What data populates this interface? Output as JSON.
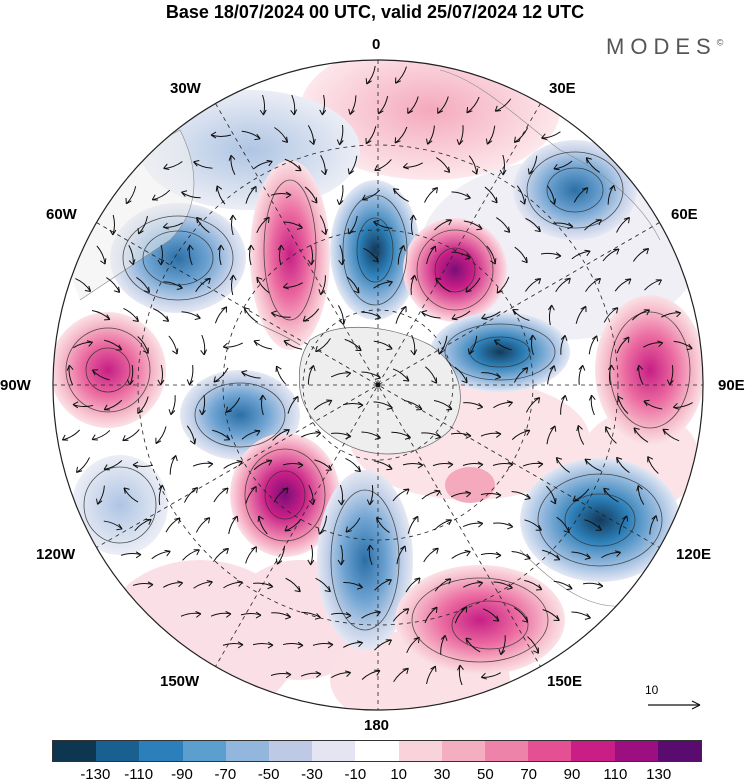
{
  "header": {
    "title": "Base 18/07/2024 00 UTC, valid 25/07/2024 12 UTC",
    "brand": "MODES",
    "brand_mark": "©"
  },
  "map": {
    "projection": "south-polar-stereographic",
    "field": "filled anomaly contours with streamlines",
    "lon_labels": {
      "top": "0",
      "top_left": "30W",
      "top_right": "30E",
      "upper_left": "60W",
      "upper_right": "60E",
      "left": "90W",
      "right": "90E",
      "lower_left": "120W",
      "lower_right": "120E",
      "bottom_left": "150W",
      "bottom_right": "150E",
      "bottom": "180"
    },
    "vector_scale_label": "10"
  },
  "colorbar": {
    "colors": [
      "#0d3651",
      "#195f8f",
      "#2c7fb8",
      "#5b9fcf",
      "#92b6dc",
      "#bec9e5",
      "#e4e4f2",
      "#ffffff",
      "#f8d3d9",
      "#f5aec0",
      "#ef82a8",
      "#e55094",
      "#c81e86",
      "#9b0f80",
      "#5a0b6f"
    ],
    "ticks": [
      "-130",
      "-110",
      "-90",
      "-70",
      "-50",
      "-30",
      "-10",
      "10",
      "30",
      "50",
      "70",
      "90",
      "110",
      "130"
    ]
  }
}
